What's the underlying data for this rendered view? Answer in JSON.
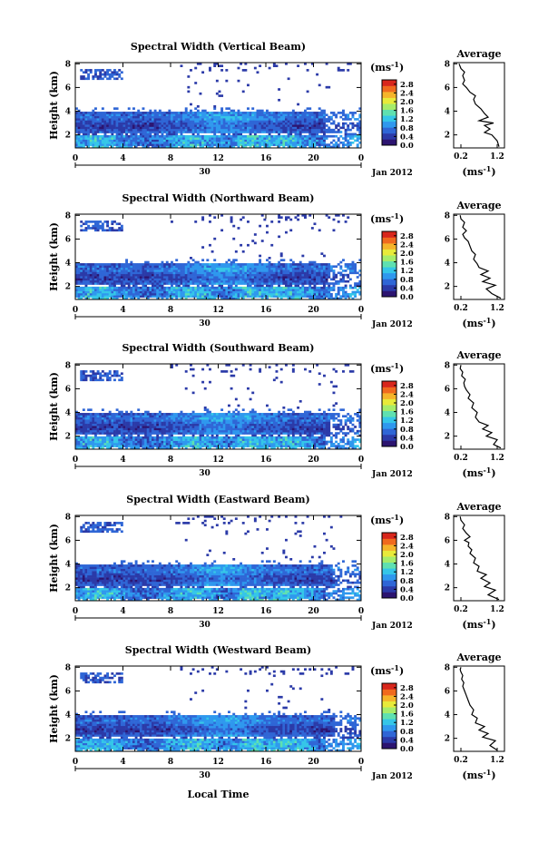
{
  "figure": {
    "xlabel": "Local Time",
    "ylabel": "Height (km)",
    "colorbar_unit_base": "(ms",
    "colorbar_unit_exp": "-1",
    "colorbar_unit_close": ")",
    "date_label": "Jan 2012",
    "day_label": "30",
    "average_title": "Average",
    "colormap": [
      "#2c1470",
      "#2b3aa8",
      "#2f66d6",
      "#2f98ee",
      "#35c6e8",
      "#5fe0b0",
      "#a6ec6a",
      "#e8ea3a",
      "#f5b42a",
      "#f06a1e",
      "#d8261c"
    ],
    "colors": {
      "profile_line": "#000000",
      "background": "#ffffff"
    }
  },
  "chart_data": [
    {
      "type": "heatmap",
      "title": "Spectral Width (Vertical Beam)",
      "x_ticks": [
        "0",
        "4",
        "8",
        "12",
        "16",
        "20",
        "0"
      ],
      "y_ticks": [
        "2",
        "4",
        "6",
        "8"
      ],
      "xlim": [
        0,
        24
      ],
      "ylim": [
        0.9,
        8.1
      ],
      "colorbar_ticks": [
        "0.0",
        "0.4",
        "0.8",
        "1.2",
        "1.6",
        "2.0",
        "2.4",
        "2.8"
      ],
      "colorbar_range": [
        0.0,
        3.0
      ],
      "profile": {
        "title": "Average",
        "xlabel": "(ms",
        "xlabel_exp": "-1",
        "xlabel_close": ")",
        "x_ticks": [
          "0.2",
          "1.2"
        ],
        "xlim": [
          0.0,
          1.4
        ],
        "y_ticks": [
          "2",
          "4",
          "6",
          "8"
        ],
        "ylim": [
          0.9,
          8.1
        ],
        "x": [
          1.25,
          1.2,
          1.05,
          0.85,
          1.0,
          0.85,
          1.1,
          0.7,
          0.95,
          0.85,
          0.75,
          0.6,
          0.55,
          0.6,
          0.45,
          0.35,
          0.25,
          0.3,
          0.25,
          0.3,
          0.2,
          0.15
        ],
        "y": [
          1.0,
          1.5,
          2.0,
          2.2,
          2.5,
          2.8,
          3.0,
          3.2,
          3.5,
          3.8,
          4.2,
          4.6,
          5.0,
          5.3,
          5.6,
          6.0,
          6.3,
          6.6,
          7.0,
          7.3,
          7.6,
          8.0
        ]
      }
    },
    {
      "type": "heatmap",
      "title": "Spectral Width (Northward Beam)",
      "x_ticks": [
        "0",
        "4",
        "8",
        "12",
        "16",
        "20",
        "0"
      ],
      "y_ticks": [
        "2",
        "4",
        "6",
        "8"
      ],
      "xlim": [
        0,
        24
      ],
      "ylim": [
        0.9,
        8.1
      ],
      "colorbar_ticks": [
        "0.0",
        "0.4",
        "0.8",
        "1.2",
        "1.6",
        "2.0",
        "2.4",
        "2.8"
      ],
      "colorbar_range": [
        0.0,
        3.0
      ],
      "profile": {
        "title": "Average",
        "xlabel": "(ms",
        "xlabel_exp": "-1",
        "xlabel_close": ")",
        "x_ticks": [
          "0.2",
          "1.2"
        ],
        "xlim": [
          0.0,
          1.4
        ],
        "y_ticks": [
          "2",
          "4",
          "6",
          "8"
        ],
        "ylim": [
          0.9,
          8.1
        ],
        "x": [
          1.3,
          1.05,
          0.9,
          1.15,
          0.8,
          1.0,
          0.75,
          0.95,
          0.7,
          0.65,
          0.55,
          0.6,
          0.5,
          0.45,
          0.4,
          0.3,
          0.25,
          0.35,
          0.25,
          0.3,
          0.2,
          0.18
        ],
        "y": [
          1.0,
          1.4,
          1.8,
          2.1,
          2.4,
          2.7,
          3.0,
          3.3,
          3.6,
          3.9,
          4.3,
          4.7,
          5.0,
          5.4,
          5.8,
          6.1,
          6.4,
          6.7,
          7.0,
          7.4,
          7.7,
          8.0
        ]
      }
    },
    {
      "type": "heatmap",
      "title": "Spectral Width (Southward Beam)",
      "x_ticks": [
        "0",
        "4",
        "8",
        "12",
        "16",
        "20",
        "0"
      ],
      "y_ticks": [
        "2",
        "4",
        "6",
        "8"
      ],
      "xlim": [
        0,
        24
      ],
      "ylim": [
        0.9,
        8.1
      ],
      "colorbar_ticks": [
        "0.0",
        "0.4",
        "0.8",
        "1.2",
        "1.6",
        "2.0",
        "2.4",
        "2.8"
      ],
      "colorbar_range": [
        0.0,
        3.0
      ],
      "profile": {
        "title": "Average",
        "xlabel": "(ms",
        "xlabel_exp": "-1",
        "xlabel_close": ")",
        "x_ticks": [
          "0.2",
          "1.2"
        ],
        "xlim": [
          0.0,
          1.4
        ],
        "y_ticks": [
          "2",
          "4",
          "6",
          "8"
        ],
        "ylim": [
          0.9,
          8.1
        ],
        "x": [
          1.3,
          1.1,
          1.2,
          0.9,
          1.05,
          0.8,
          0.95,
          0.7,
          0.6,
          0.65,
          0.5,
          0.55,
          0.4,
          0.45,
          0.35,
          0.3,
          0.28,
          0.32,
          0.22,
          0.25,
          0.18,
          0.2
        ],
        "y": [
          1.0,
          1.3,
          1.7,
          2.0,
          2.3,
          2.6,
          2.9,
          3.2,
          3.6,
          4.0,
          4.4,
          4.8,
          5.2,
          5.5,
          5.9,
          6.2,
          6.5,
          6.8,
          7.1,
          7.4,
          7.7,
          8.0
        ]
      }
    },
    {
      "type": "heatmap",
      "title": "Spectral Width (Eastward Beam)",
      "x_ticks": [
        "0",
        "4",
        "8",
        "12",
        "16",
        "20",
        "0"
      ],
      "y_ticks": [
        "2",
        "4",
        "6",
        "8"
      ],
      "xlim": [
        0,
        24
      ],
      "ylim": [
        0.9,
        8.1
      ],
      "colorbar_ticks": [
        "0.0",
        "0.4",
        "0.8",
        "1.2",
        "1.6",
        "2.0",
        "2.4",
        "2.8"
      ],
      "colorbar_range": [
        0.0,
        3.0
      ],
      "profile": {
        "title": "Average",
        "xlabel": "(ms",
        "xlabel_exp": "-1",
        "xlabel_close": ")",
        "x_ticks": [
          "0.2",
          "1.2"
        ],
        "xlim": [
          0.0,
          1.4
        ],
        "y_ticks": [
          "2",
          "4",
          "6",
          "8"
        ],
        "ylim": [
          0.9,
          8.1
        ],
        "x": [
          1.25,
          0.95,
          1.15,
          0.85,
          1.0,
          0.75,
          0.9,
          0.65,
          0.7,
          0.55,
          0.6,
          0.45,
          0.5,
          0.4,
          0.42,
          0.3,
          0.45,
          0.35,
          0.25,
          0.3,
          0.2,
          0.18
        ],
        "y": [
          1.0,
          1.4,
          1.8,
          2.1,
          2.4,
          2.8,
          3.1,
          3.4,
          3.8,
          4.1,
          4.5,
          4.9,
          5.2,
          5.5,
          5.8,
          6.0,
          6.3,
          6.6,
          7.0,
          7.3,
          7.7,
          8.0
        ]
      }
    },
    {
      "type": "heatmap",
      "title": "Spectral Width (Westward Beam)",
      "x_ticks": [
        "0",
        "4",
        "8",
        "12",
        "16",
        "20",
        "0"
      ],
      "y_ticks": [
        "2",
        "4",
        "6",
        "8"
      ],
      "xlim": [
        0,
        24
      ],
      "ylim": [
        0.9,
        8.1
      ],
      "colorbar_ticks": [
        "0.0",
        "0.4",
        "0.8",
        "1.2",
        "1.6",
        "2.0",
        "2.4",
        "2.8"
      ],
      "colorbar_range": [
        0.0,
        3.0
      ],
      "profile": {
        "title": "Average",
        "xlabel": "(ms",
        "xlabel_exp": "-1",
        "xlabel_close": ")",
        "x_ticks": [
          "0.2",
          "1.2"
        ],
        "xlim": [
          0.0,
          1.4
        ],
        "y_ticks": [
          "2",
          "4",
          "6",
          "8"
        ],
        "ylim": [
          0.9,
          8.1
        ],
        "x": [
          1.2,
          1.0,
          1.15,
          0.8,
          0.95,
          0.7,
          0.85,
          0.6,
          0.65,
          0.5,
          0.55,
          0.45,
          0.4,
          0.35,
          0.3,
          0.25,
          0.28,
          0.22,
          0.25,
          0.2,
          0.18,
          0.2
        ],
        "y": [
          1.0,
          1.4,
          1.8,
          2.1,
          2.4,
          2.7,
          3.0,
          3.3,
          3.7,
          4.0,
          4.4,
          4.8,
          5.2,
          5.6,
          6.0,
          6.4,
          6.7,
          7.0,
          7.3,
          7.6,
          7.8,
          8.0
        ]
      }
    }
  ]
}
